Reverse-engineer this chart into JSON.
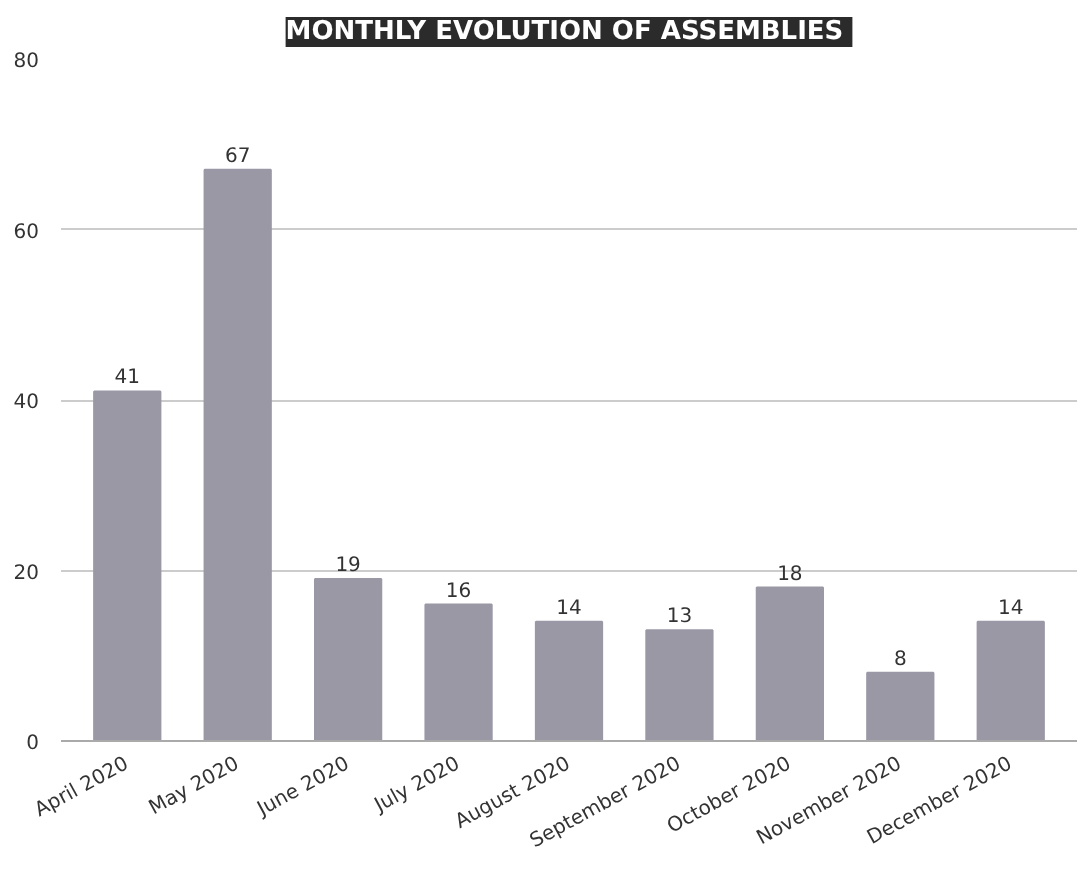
{
  "chart_data": {
    "type": "bar",
    "title": "MONTHLY  EVOLUTION OF ASSEMBLIES",
    "categories": [
      "April 2020",
      "May 2020",
      "June 2020",
      "July 2020",
      "August 2020",
      "September 2020",
      "October 2020",
      "November 2020",
      "December 2020"
    ],
    "values": [
      41,
      67,
      19,
      16,
      14,
      13,
      18,
      8,
      14
    ],
    "color": "#9b98a6",
    "ylim": [
      0,
      80
    ],
    "yticks": [
      0,
      20,
      40,
      60,
      80
    ],
    "grid": "y",
    "data_labels": true
  }
}
